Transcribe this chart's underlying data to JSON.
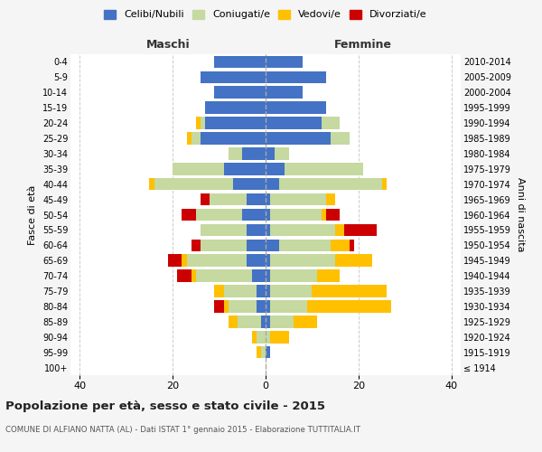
{
  "age_groups": [
    "100+",
    "95-99",
    "90-94",
    "85-89",
    "80-84",
    "75-79",
    "70-74",
    "65-69",
    "60-64",
    "55-59",
    "50-54",
    "45-49",
    "40-44",
    "35-39",
    "30-34",
    "25-29",
    "20-24",
    "15-19",
    "10-14",
    "5-9",
    "0-4"
  ],
  "birth_years": [
    "≤ 1914",
    "1915-1919",
    "1920-1924",
    "1925-1929",
    "1930-1934",
    "1935-1939",
    "1940-1944",
    "1945-1949",
    "1950-1954",
    "1955-1959",
    "1960-1964",
    "1965-1969",
    "1970-1974",
    "1975-1979",
    "1980-1984",
    "1985-1989",
    "1990-1994",
    "1995-1999",
    "2000-2004",
    "2005-2009",
    "2010-2014"
  ],
  "maschi_celibi": [
    0,
    0,
    0,
    1,
    2,
    2,
    3,
    4,
    4,
    4,
    5,
    4,
    7,
    9,
    5,
    14,
    13,
    13,
    11,
    14,
    11
  ],
  "maschi_coniugati": [
    0,
    1,
    2,
    5,
    6,
    7,
    12,
    13,
    10,
    10,
    10,
    8,
    17,
    11,
    3,
    2,
    1,
    0,
    0,
    0,
    0
  ],
  "maschi_vedovi": [
    0,
    1,
    1,
    2,
    1,
    2,
    1,
    1,
    0,
    0,
    0,
    0,
    1,
    0,
    0,
    1,
    1,
    0,
    0,
    0,
    0
  ],
  "maschi_divorziati": [
    0,
    0,
    0,
    0,
    2,
    0,
    3,
    3,
    2,
    0,
    3,
    2,
    0,
    0,
    0,
    0,
    0,
    0,
    0,
    0,
    0
  ],
  "femmine_celibi": [
    0,
    1,
    0,
    1,
    1,
    1,
    1,
    1,
    3,
    1,
    1,
    1,
    3,
    4,
    2,
    14,
    12,
    13,
    8,
    13,
    8
  ],
  "femmine_coniugati": [
    0,
    0,
    1,
    5,
    8,
    9,
    10,
    14,
    11,
    14,
    11,
    12,
    22,
    17,
    3,
    4,
    4,
    0,
    0,
    0,
    0
  ],
  "femmine_vedovi": [
    0,
    0,
    4,
    5,
    18,
    16,
    5,
    8,
    4,
    2,
    1,
    2,
    1,
    0,
    0,
    0,
    0,
    0,
    0,
    0,
    0
  ],
  "femmine_divorziati": [
    0,
    0,
    0,
    0,
    0,
    0,
    0,
    0,
    1,
    7,
    3,
    0,
    0,
    0,
    0,
    0,
    0,
    0,
    0,
    0,
    0
  ],
  "color_celibi": "#4472c4",
  "color_coniugati": "#c5d9a0",
  "color_vedovi": "#ffc000",
  "color_divorziati": "#cc0000",
  "xlim": 42,
  "title": "Popolazione per età, sesso e stato civile - 2015",
  "subtitle": "COMUNE DI ALFIANO NATTA (AL) - Dati ISTAT 1° gennaio 2015 - Elaborazione TUTTITALIA.IT",
  "ylabel_left": "Fasce di età",
  "ylabel_right": "Anni di nascita",
  "xlabel_left": "Maschi",
  "xlabel_right": "Femmine",
  "bg_color": "#f5f5f5",
  "plot_bg": "#ffffff"
}
